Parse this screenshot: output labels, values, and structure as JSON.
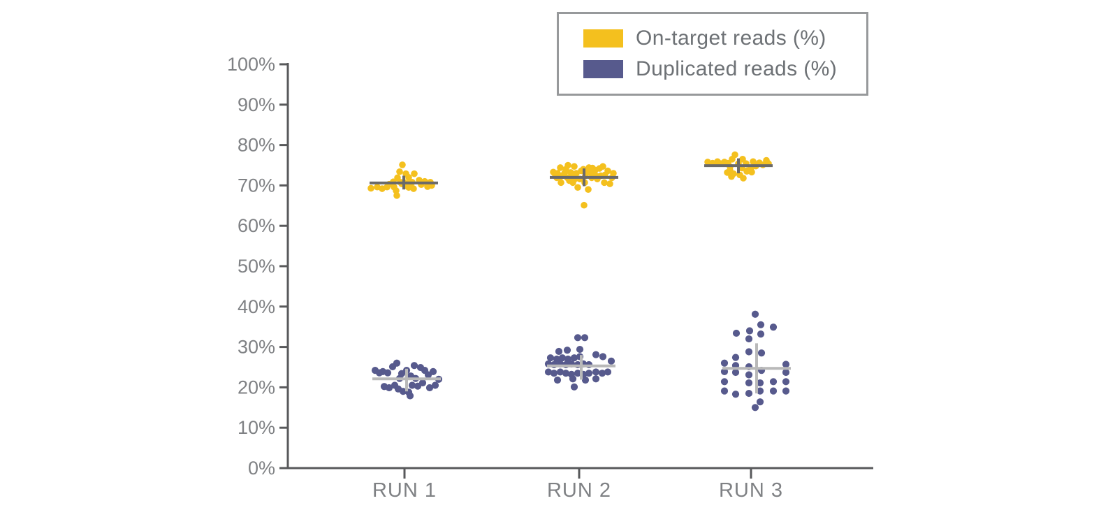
{
  "chart_data": {
    "type": "scatter",
    "title": "",
    "xlabel": "",
    "ylabel": "",
    "ylim": [
      0,
      100
    ],
    "ytick_step": 10,
    "ytick_labels": [
      "0%",
      "10%",
      "20%",
      "30%",
      "40%",
      "50%",
      "60%",
      "70%",
      "80%",
      "90%",
      "100%"
    ],
    "categories": [
      "RUN 1",
      "RUN 2",
      "RUN 3"
    ],
    "legend_position": "top-right",
    "grid": false,
    "colors": {
      "on_target": "#F4C01E",
      "duplicated": "#575A8D",
      "mean_cross_on_target": "#6A6A6A",
      "mean_cross_duplicated": "#B9B9B9",
      "axis": "#58595B",
      "tick_label": "#7F8184"
    },
    "series": [
      {
        "name": "On-target reads (%)",
        "color": "#F4C01E",
        "dot_radius": 4.8,
        "mean_color": "#6A6A6A",
        "groups": [
          {
            "category": "RUN 1",
            "mean": 70.6,
            "err_low": 69.0,
            "err_high": 72.4,
            "center_offset": -1,
            "points": [
              [
                -48,
                69.3
              ],
              [
                -39,
                69.6
              ],
              [
                -32,
                69.2
              ],
              [
                -25,
                69.6
              ],
              [
                -22,
                70.3
              ],
              [
                -16,
                70.9
              ],
              [
                -15,
                69.6
              ],
              [
                -12,
                68.7
              ],
              [
                -10,
                71.9
              ],
              [
                -7,
                73.4
              ],
              [
                -3,
                75.1
              ],
              [
                -1,
                70.8
              ],
              [
                2,
                72.9
              ],
              [
                6,
                72.0
              ],
              [
                6,
                69.5
              ],
              [
                11,
                70.8
              ],
              [
                13,
                69.2
              ],
              [
                14,
                72.9
              ],
              [
                21,
                71.3
              ],
              [
                24,
                70.2
              ],
              [
                29,
                71.0
              ],
              [
                33,
                69.7
              ],
              [
                37,
                70.8
              ],
              [
                39,
                70.0
              ],
              [
                -11,
                67.5
              ],
              [
                -4,
                70.4
              ],
              [
                1,
                69.9
              ],
              [
                -6,
                70.8
              ],
              [
                4,
                70.4
              ],
              [
                9,
                69.9
              ]
            ]
          },
          {
            "category": "RUN 2",
            "mean": 72.0,
            "err_low": 69.8,
            "err_high": 74.2,
            "center_offset": 7,
            "points": [
              [
                -37,
                73.3
              ],
              [
                -32,
                71.9
              ],
              [
                -27,
                74.4
              ],
              [
                -26,
                70.7
              ],
              [
                -21,
                73.0
              ],
              [
                -17,
                71.9
              ],
              [
                -16,
                75.0
              ],
              [
                -12,
                73.2
              ],
              [
                -9,
                70.7
              ],
              [
                -7,
                74.7
              ],
              [
                -4,
                73.0
              ],
              [
                -2,
                69.5
              ],
              [
                1,
                71.6
              ],
              [
                3,
                73.6
              ],
              [
                8,
                70.7
              ],
              [
                9,
                72.4
              ],
              [
                13,
                69.0
              ],
              [
                14,
                74.4
              ],
              [
                18,
                71.9
              ],
              [
                21,
                73.0
              ],
              [
                26,
                71.6
              ],
              [
                29,
                74.2
              ],
              [
                34,
                74.7
              ],
              [
                36,
                70.7
              ],
              [
                41,
                73.6
              ],
              [
                44,
                70.4
              ],
              [
                7,
                65.1
              ],
              [
                -31,
                73.0
              ],
              [
                -6,
                71.6
              ],
              [
                47,
                71.9
              ],
              [
                24,
                72.4
              ],
              [
                -24,
                72.4
              ],
              [
                -14,
                71.2
              ],
              [
                16,
                73.2
              ],
              [
                31,
                72.4
              ],
              [
                -19,
                74.0
              ],
              [
                6,
                74.0
              ],
              [
                11,
                73.4
              ],
              [
                19,
                74.3
              ],
              [
                23,
                73.8
              ],
              [
                37,
                72.6
              ],
              [
                -9,
                72.2
              ],
              [
                -27,
                72.2
              ],
              [
                -34,
                72.6
              ],
              [
                49,
                73.0
              ]
            ]
          },
          {
            "category": "RUN 3",
            "mean": 74.9,
            "err_low": 73.0,
            "err_high": 76.7,
            "center_offset": -18,
            "points": [
              [
                -62,
                75.8
              ],
              [
                -55,
                75.5
              ],
              [
                -48,
                75.9
              ],
              [
                -43,
                75.4
              ],
              [
                -38,
                75.8
              ],
              [
                -33,
                75.5
              ],
              [
                -30,
                74.6
              ],
              [
                -27,
                76.5
              ],
              [
                -23,
                77.6
              ],
              [
                -30,
                73.7
              ],
              [
                -18,
                75.4
              ],
              [
                -25,
                72.9
              ],
              [
                -13,
                74.3
              ],
              [
                -12,
                76.5
              ],
              [
                -16,
                72.6
              ],
              [
                -7,
                75.4
              ],
              [
                -11,
                71.8
              ],
              [
                0,
                74.3
              ],
              [
                3,
                75.9
              ],
              [
                7,
                74.8
              ],
              [
                12,
                75.6
              ],
              [
                17,
                75.1
              ],
              [
                22,
                76.2
              ],
              [
                25,
                75.4
              ],
              [
                -28,
                72.2
              ],
              [
                -34,
                73.2
              ],
              [
                -6,
                73.5
              ],
              [
                -5,
                73.7
              ],
              [
                1,
                73.3
              ]
            ]
          }
        ]
      },
      {
        "name": "Duplicated reads (%)",
        "color": "#575A8D",
        "dot_radius": 5.1,
        "mean_color": "#B9B9B9",
        "groups": [
          {
            "category": "RUN 1",
            "mean": 22.1,
            "err_low": 19.0,
            "err_high": 24.6,
            "center_offset": 3,
            "points": [
              [
                -42,
                24.2
              ],
              [
                -36,
                23.6
              ],
              [
                -31,
                23.9
              ],
              [
                -29,
                20.2
              ],
              [
                -24,
                23.6
              ],
              [
                -22,
                19.9
              ],
              [
                -17,
                25.1
              ],
              [
                -14,
                20.5
              ],
              [
                -11,
                26.0
              ],
              [
                -9,
                19.6
              ],
              [
                -7,
                22.2
              ],
              [
                -4,
                23.4
              ],
              [
                -2,
                19.0
              ],
              [
                3,
                24.2
              ],
              [
                6,
                18.8
              ],
              [
                9,
                22.8
              ],
              [
                11,
                20.5
              ],
              [
                14,
                25.4
              ],
              [
                16,
                22.2
              ],
              [
                19,
                20.3
              ],
              [
                23,
                24.9
              ],
              [
                26,
                21.1
              ],
              [
                29,
                24.2
              ],
              [
                34,
                23.1
              ],
              [
                36,
                19.9
              ],
              [
                41,
                23.9
              ],
              [
                44,
                20.5
              ],
              [
                49,
                22.0
              ],
              [
                8,
                17.9
              ]
            ]
          },
          {
            "category": "RUN 2",
            "mean": 25.3,
            "err_low": 21.9,
            "err_high": 28.0,
            "center_offset": 3,
            "points": [
              [
                -2,
                32.3
              ],
              [
                8,
                32.3
              ],
              [
                -29,
                28.9
              ],
              [
                -17,
                29.2
              ],
              [
                1,
                29.4
              ],
              [
                -41,
                27.3
              ],
              [
                -32,
                27.0
              ],
              [
                -24,
                27.3
              ],
              [
                -16,
                27.0
              ],
              [
                -7,
                27.3
              ],
              [
                1,
                27.6
              ],
              [
                24,
                28.1
              ],
              [
                34,
                27.6
              ],
              [
                -44,
                25.8
              ],
              [
                -36,
                25.6
              ],
              [
                -27,
                25.8
              ],
              [
                -19,
                25.6
              ],
              [
                -11,
                25.8
              ],
              [
                -2,
                25.6
              ],
              [
                6,
                25.8
              ],
              [
                14,
                25.6
              ],
              [
                46,
                26.5
              ],
              [
                -44,
                23.8
              ],
              [
                -36,
                23.5
              ],
              [
                -27,
                23.8
              ],
              [
                -19,
                23.5
              ],
              [
                -11,
                23.2
              ],
              [
                -2,
                23.5
              ],
              [
                6,
                23.2
              ],
              [
                14,
                23.5
              ],
              [
                24,
                23.8
              ],
              [
                33,
                23.5
              ],
              [
                41,
                23.8
              ],
              [
                -31,
                21.8
              ],
              [
                -9,
                22.1
              ],
              [
                9,
                21.8
              ],
              [
                24,
                22.1
              ],
              [
                -7,
                20.1
              ]
            ]
          },
          {
            "category": "RUN 3",
            "mean": 24.7,
            "err_low": 18.5,
            "err_high": 30.9,
            "center_offset": 8,
            "points": [
              [
                6,
                38.1
              ],
              [
                14,
                35.5
              ],
              [
                32,
                34.9
              ],
              [
                -21,
                33.4
              ],
              [
                -2,
                34.0
              ],
              [
                -3,
                32.0
              ],
              [
                14,
                33.2
              ],
              [
                -3,
                28.8
              ],
              [
                15,
                28.5
              ],
              [
                -22,
                27.4
              ],
              [
                -38,
                26.0
              ],
              [
                -22,
                25.4
              ],
              [
                -3,
                25.1
              ],
              [
                -38,
                23.9
              ],
              [
                -22,
                23.7
              ],
              [
                -3,
                23.1
              ],
              [
                15,
                24.2
              ],
              [
                50,
                25.7
              ],
              [
                50,
                23.7
              ],
              [
                -38,
                21.4
              ],
              [
                -3,
                21.1
              ],
              [
                13,
                21.1
              ],
              [
                32,
                21.4
              ],
              [
                50,
                21.4
              ],
              [
                -38,
                19.1
              ],
              [
                -3,
                18.5
              ],
              [
                13,
                19.1
              ],
              [
                32,
                19.1
              ],
              [
                50,
                19.1
              ],
              [
                -22,
                18.3
              ],
              [
                13,
                16.4
              ],
              [
                6,
                15.0
              ]
            ]
          }
        ]
      }
    ]
  }
}
